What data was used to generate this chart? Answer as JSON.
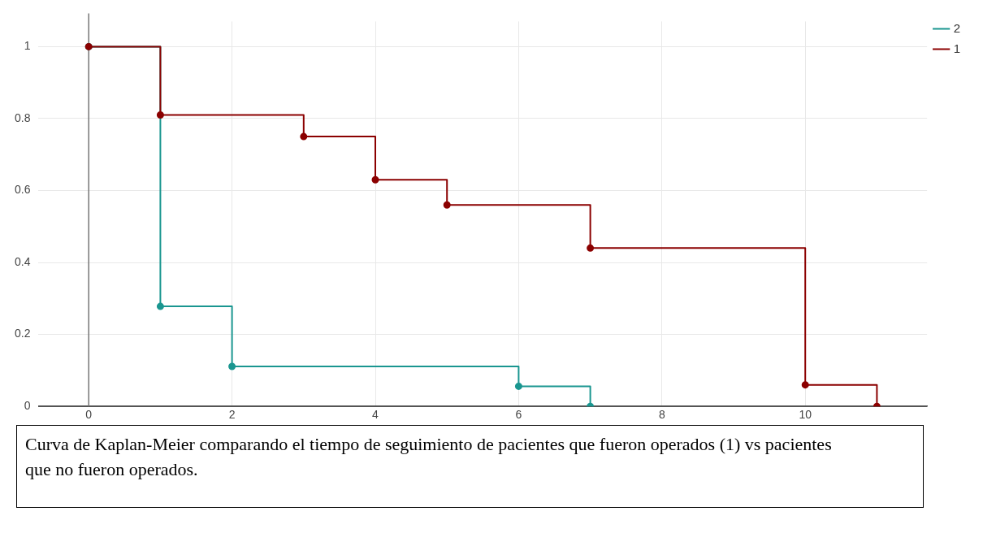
{
  "chart_data": {
    "type": "step",
    "series": [
      {
        "name": "2",
        "color": "#1a9690",
        "x": [
          0,
          1,
          2,
          6,
          7
        ],
        "values": [
          1,
          0.278,
          0.111,
          0.056,
          0
        ]
      },
      {
        "name": "1",
        "color": "#8b0000",
        "x": [
          0,
          1,
          3,
          4,
          5,
          7,
          10,
          11
        ],
        "values": [
          1,
          0.81,
          0.75,
          0.63,
          0.56,
          0.44,
          0.06,
          0
        ]
      }
    ],
    "xlim": [
      -0.7,
      11.7
    ],
    "xticks": [
      0,
      2,
      4,
      6,
      8,
      10
    ],
    "ylim": [
      0,
      1.07
    ],
    "yticks": [
      0,
      0.2,
      0.4,
      0.6,
      0.8,
      {
        "value": 1,
        "label": "1"
      }
    ],
    "grid": true,
    "legend": "top right",
    "marker": "circle",
    "line_style": "solid",
    "annotations": [
      "Curva de Kaplan-Meier comparando el tiempo de seguimiento de pacientes que fueron operados (1) vs pacientes que no fueron operados."
    ]
  }
}
